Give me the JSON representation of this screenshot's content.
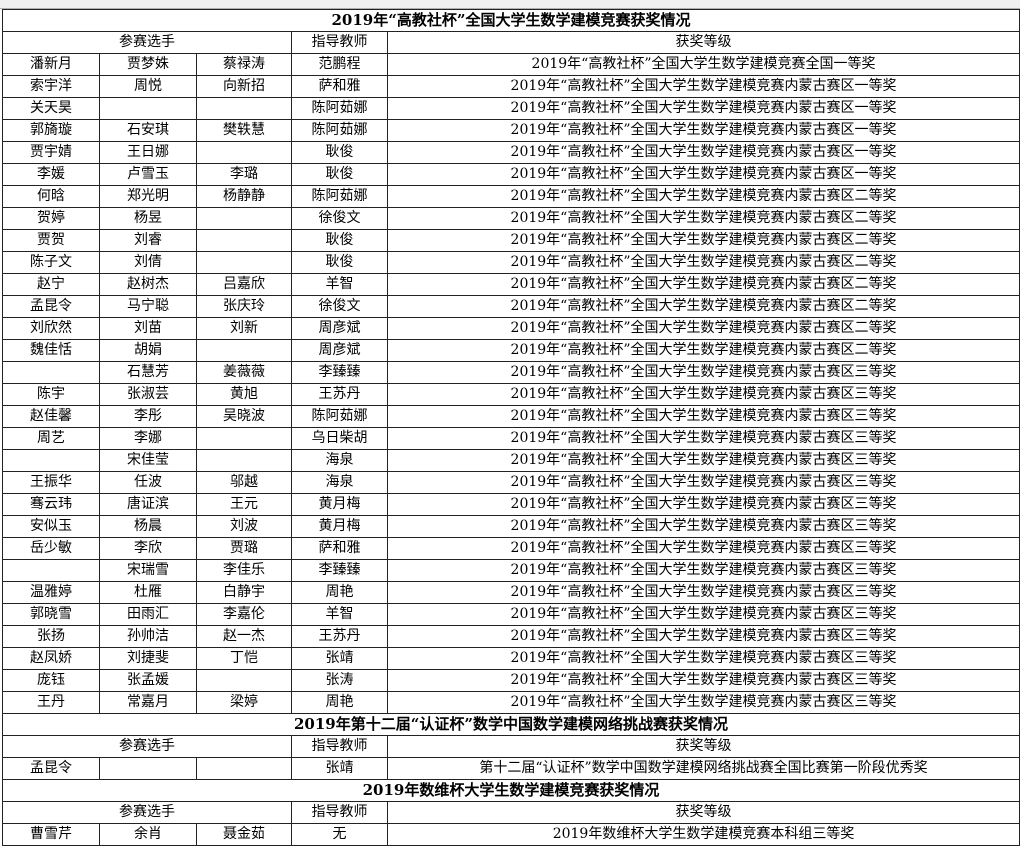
{
  "sections": [
    {
      "title": "2019年“高教社杯”全国大学生数学建模竞赛获奖情况",
      "header": {
        "players": "参赛选手",
        "teacher": "指导教师",
        "award": "获奖等级"
      },
      "rows": [
        [
          "潘新月",
          "贾梦姝",
          "蔡禄涛",
          "范鹏程",
          "2019年“高教社杯”全国大学生数学建模竞赛全国一等奖"
        ],
        [
          "索宇洋",
          "周悦",
          "向新招",
          "萨和雅",
          "2019年“高教社杯”全国大学生数学建模竞赛内蒙古赛区一等奖"
        ],
        [
          "关天昊",
          null,
          null,
          "陈阿茹娜",
          "2019年“高教社杯”全国大学生数学建模竞赛内蒙古赛区一等奖"
        ],
        [
          "郭旖璇",
          "石安琪",
          "樊轶慧",
          "陈阿茹娜",
          "2019年“高教社杯”全国大学生数学建模竞赛内蒙古赛区一等奖"
        ],
        [
          "贾宇婧",
          "王日娜",
          null,
          "耿俊",
          "2019年“高教社杯”全国大学生数学建模竞赛内蒙古赛区一等奖"
        ],
        [
          "李媛",
          "卢雪玉",
          "李璐",
          "耿俊",
          "2019年“高教社杯”全国大学生数学建模竞赛内蒙古赛区一等奖"
        ],
        [
          "何晗",
          "郑光明",
          "杨静静",
          "陈阿茹娜",
          "2019年“高教社杯”全国大学生数学建模竞赛内蒙古赛区二等奖"
        ],
        [
          "贺婷",
          "杨昱",
          null,
          "徐俊文",
          "2019年“高教社杯”全国大学生数学建模竞赛内蒙古赛区二等奖"
        ],
        [
          "贾贺",
          "刘睿",
          null,
          "耿俊",
          "2019年“高教社杯”全国大学生数学建模竞赛内蒙古赛区二等奖"
        ],
        [
          "陈子文",
          "刘倩",
          null,
          "耿俊",
          "2019年“高教社杯”全国大学生数学建模竞赛内蒙古赛区二等奖"
        ],
        [
          "赵宁",
          "赵树杰",
          "吕嘉欣",
          "羊智",
          "2019年“高教社杯”全国大学生数学建模竞赛内蒙古赛区二等奖"
        ],
        [
          "孟昆令",
          "马宁聪",
          "张庆玲",
          "徐俊文",
          "2019年“高教社杯”全国大学生数学建模竞赛内蒙古赛区二等奖"
        ],
        [
          "刘欣然",
          "刘苗",
          "刘新",
          "周彦斌",
          "2019年“高教社杯”全国大学生数学建模竞赛内蒙古赛区二等奖"
        ],
        [
          "魏佳恬",
          "胡娟",
          null,
          "周彦斌",
          "2019年“高教社杯”全国大学生数学建模竞赛内蒙古赛区二等奖"
        ],
        [
          null,
          "石慧芳",
          "姜薇薇",
          "李臻臻",
          "2019年“高教社杯”全国大学生数学建模竞赛内蒙古赛区三等奖"
        ],
        [
          "陈宇",
          "张淑芸",
          "黄旭",
          "王苏丹",
          "2019年“高教社杯”全国大学生数学建模竞赛内蒙古赛区三等奖"
        ],
        [
          "赵佳馨",
          "李彤",
          "吴晓波",
          "陈阿茹娜",
          "2019年“高教社杯”全国大学生数学建模竞赛内蒙古赛区三等奖"
        ],
        [
          "周艺",
          "李娜",
          null,
          "乌日柴胡",
          "2019年“高教社杯”全国大学生数学建模竞赛内蒙古赛区三等奖"
        ],
        [
          null,
          "宋佳莹",
          null,
          "海泉",
          "2019年“高教社杯”全国大学生数学建模竞赛内蒙古赛区三等奖"
        ],
        [
          "王振华",
          "任波",
          "邬越",
          "海泉",
          "2019年“高教社杯”全国大学生数学建模竞赛内蒙古赛区三等奖"
        ],
        [
          "骞云玮",
          "唐证滨",
          "王元",
          "黄月梅",
          "2019年“高教社杯”全国大学生数学建模竞赛内蒙古赛区三等奖"
        ],
        [
          "安似玉",
          "杨晨",
          "刘波",
          "黄月梅",
          "2019年“高教社杯”全国大学生数学建模竞赛内蒙古赛区三等奖"
        ],
        [
          "岳少敏",
          "李欣",
          "贾璐",
          "萨和雅",
          "2019年“高教社杯”全国大学生数学建模竞赛内蒙古赛区三等奖"
        ],
        [
          null,
          "宋瑞雪",
          "李佳乐",
          "李臻臻",
          "2019年“高教社杯”全国大学生数学建模竞赛内蒙古赛区三等奖"
        ],
        [
          "温雅婷",
          "杜雁",
          "白静宇",
          "周艳",
          "2019年“高教社杯”全国大学生数学建模竞赛内蒙古赛区三等奖"
        ],
        [
          "郭晓雪",
          "田雨汇",
          "李嘉伦",
          "羊智",
          "2019年“高教社杯”全国大学生数学建模竞赛内蒙古赛区三等奖"
        ],
        [
          "张扬",
          "孙帅洁",
          "赵一杰",
          "王苏丹",
          "2019年“高教社杯”全国大学生数学建模竞赛内蒙古赛区三等奖"
        ],
        [
          "赵凤娇",
          "刘捷斐",
          "丁恺",
          "张靖",
          "2019年“高教社杯”全国大学生数学建模竞赛内蒙古赛区三等奖"
        ],
        [
          "庞钰",
          "张孟媛",
          null,
          "张涛",
          "2019年“高教社杯”全国大学生数学建模竞赛内蒙古赛区三等奖"
        ],
        [
          "王丹",
          "常嘉月",
          "梁婷",
          "周艳",
          "2019年“高教社杯”全国大学生数学建模竞赛内蒙古赛区三等奖"
        ]
      ]
    },
    {
      "title": "2019年第十二届“认证杯”数学中国数学建模网络挑战赛获奖情况",
      "header": {
        "players": "参赛选手",
        "teacher": "指导教师",
        "award": "获奖等级"
      },
      "rows": [
        [
          "孟昆令",
          null,
          null,
          "张靖",
          "第十二届“认证杯”数学中国数学建模网络挑战赛全国比赛第一阶段优秀奖"
        ]
      ]
    },
    {
      "title": "2019年数维杯大学生数学建模竞赛获奖情况",
      "header": {
        "players": "参赛选手",
        "teacher": "指导教师",
        "award": "获奖等级"
      },
      "rows": [
        [
          "曹雪芹",
          "余肖",
          "聂金茹",
          "无",
          "2019年数维杯大学生数学建模竞赛本科组三等奖"
        ]
      ]
    }
  ]
}
